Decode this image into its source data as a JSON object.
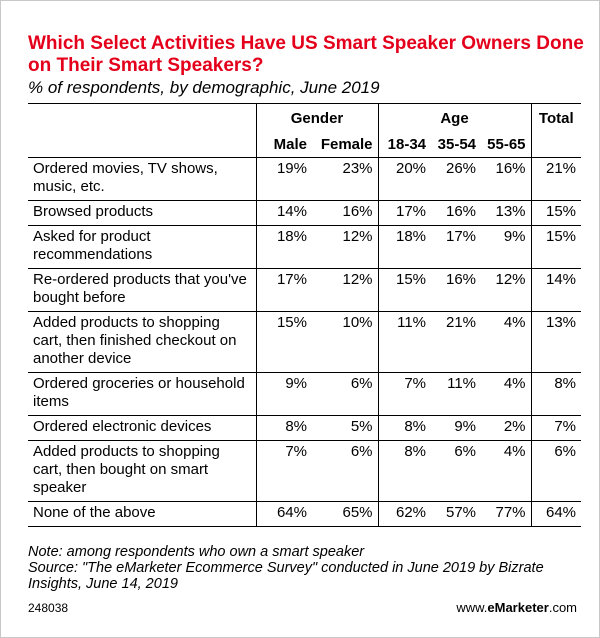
{
  "header": {
    "title": "Which Select Activities Have US Smart Speaker Owners Done on Their Smart Speakers?",
    "subtitle": "% of respondents, by demographic, June 2019"
  },
  "chart_data": {
    "type": "table",
    "group_headers": {
      "gender": "Gender",
      "age": "Age",
      "total": "Total"
    },
    "columns": [
      "Male",
      "Female",
      "18-34",
      "35-54",
      "55-65"
    ],
    "rows": [
      {
        "label": "Ordered movies, TV shows, music, etc.",
        "values": [
          "19%",
          "23%",
          "20%",
          "26%",
          "16%",
          "21%"
        ]
      },
      {
        "label": "Browsed products",
        "values": [
          "14%",
          "16%",
          "17%",
          "16%",
          "13%",
          "15%"
        ]
      },
      {
        "label": "Asked for product recommendations",
        "values": [
          "18%",
          "12%",
          "18%",
          "17%",
          "9%",
          "15%"
        ]
      },
      {
        "label": "Re-ordered products that you've bought before",
        "values": [
          "17%",
          "12%",
          "15%",
          "16%",
          "12%",
          "14%"
        ]
      },
      {
        "label": "Added products to shopping cart, then finished checkout on another device",
        "values": [
          "15%",
          "10%",
          "11%",
          "21%",
          "4%",
          "13%"
        ]
      },
      {
        "label": "Ordered groceries or household items",
        "values": [
          "9%",
          "6%",
          "7%",
          "11%",
          "4%",
          "8%"
        ]
      },
      {
        "label": "Ordered electronic devices",
        "values": [
          "8%",
          "5%",
          "8%",
          "9%",
          "2%",
          "7%"
        ]
      },
      {
        "label": "Added products to shopping cart, then bought on smart speaker",
        "values": [
          "7%",
          "6%",
          "8%",
          "6%",
          "4%",
          "6%"
        ]
      },
      {
        "label": "None of the above",
        "values": [
          "64%",
          "65%",
          "62%",
          "57%",
          "77%",
          "64%"
        ]
      }
    ]
  },
  "footer": {
    "note": "Note: among respondents who own a smart speaker",
    "source": "Source: \"The eMarketer Ecommerce Survey\" conducted in June 2019 by Bizrate Insights, June 14, 2019",
    "code": "248038",
    "brand_prefix": "www.",
    "brand_name": "eMarketer",
    "brand_suffix": ".com"
  }
}
